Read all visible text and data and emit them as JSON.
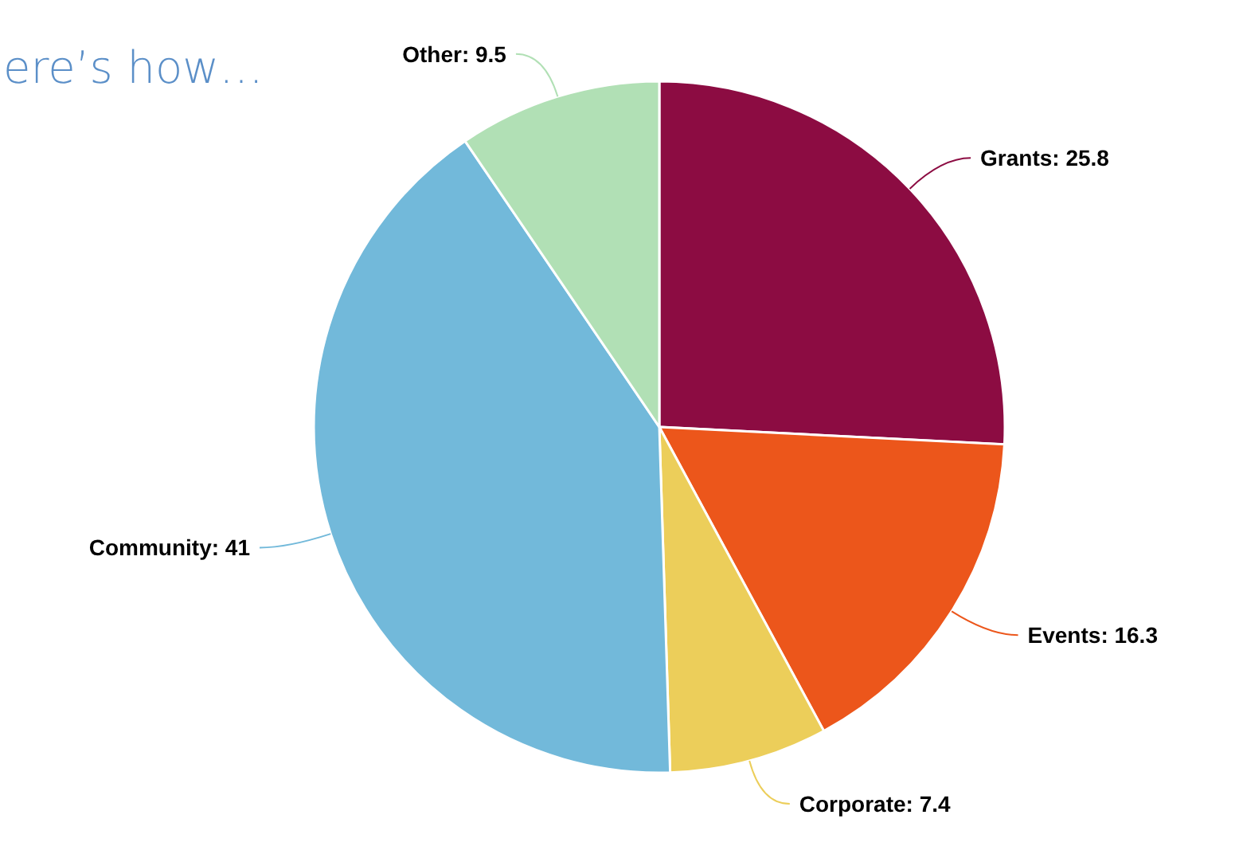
{
  "chart_data": {
    "type": "pie",
    "title": "ere’s how…",
    "categories": [
      "Grants",
      "Events",
      "Corporate",
      "Community",
      "Other"
    ],
    "values": [
      25.8,
      16.3,
      7.4,
      41,
      9.5
    ],
    "colors": [
      "#8c0c42",
      "#ec561b",
      "#ecce5a",
      "#72b9da",
      "#b1e0b5"
    ],
    "value_labels": [
      ": 25.8",
      ": 16.3",
      ": 7.4",
      ": 41",
      ": 9.5"
    ]
  }
}
